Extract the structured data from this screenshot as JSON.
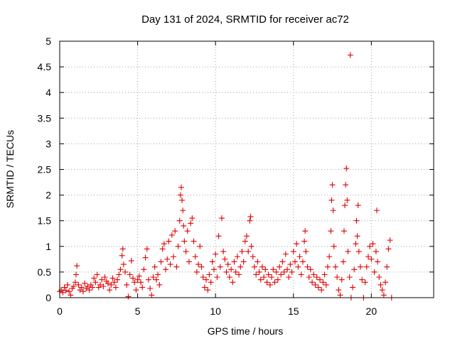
{
  "chart_data": {
    "type": "scatter",
    "title": "Day 131 of 2024, SRMTID for receiver ac72",
    "xlabel": "GPS time / hours",
    "ylabel": "SRMTID / TECUs",
    "xlim": [
      0,
      24
    ],
    "ylim": [
      0,
      5
    ],
    "xticks": [
      0,
      5,
      10,
      15,
      20
    ],
    "yticks": [
      0,
      0.5,
      1,
      1.5,
      2,
      2.5,
      3,
      3.5,
      4,
      4.5,
      5
    ],
    "xtick_labels": [
      "0",
      "5",
      "10",
      "15",
      "20"
    ],
    "ytick_labels": [
      "0",
      "0.5",
      "1",
      "1.5",
      "2",
      "2.5",
      "3",
      "3.5",
      "4",
      "4.5",
      "5"
    ],
    "grid": true,
    "marker": "+",
    "color": "#e00000",
    "series": [
      {
        "name": "SRMTID",
        "points": [
          [
            0.0,
            0.12
          ],
          [
            0.1,
            0.15
          ],
          [
            0.2,
            0.1
          ],
          [
            0.3,
            0.2
          ],
          [
            0.4,
            0.14
          ],
          [
            0.5,
            0.25
          ],
          [
            0.6,
            0.12
          ],
          [
            0.7,
            0.05
          ],
          [
            0.8,
            0.18
          ],
          [
            0.9,
            0.22
          ],
          [
            1.0,
            0.3
          ],
          [
            1.05,
            0.45
          ],
          [
            1.1,
            0.62
          ],
          [
            1.2,
            0.25
          ],
          [
            1.3,
            0.15
          ],
          [
            1.4,
            0.2
          ],
          [
            1.5,
            0.12
          ],
          [
            1.6,
            0.28
          ],
          [
            1.7,
            0.18
          ],
          [
            1.8,
            0.22
          ],
          [
            1.9,
            0.15
          ],
          [
            2.0,
            0.25
          ],
          [
            2.1,
            0.2
          ],
          [
            2.2,
            0.38
          ],
          [
            2.3,
            0.3
          ],
          [
            2.4,
            0.45
          ],
          [
            2.5,
            0.2
          ],
          [
            2.6,
            0.25
          ],
          [
            2.7,
            0.35
          ],
          [
            2.8,
            0.22
          ],
          [
            2.9,
            0.4
          ],
          [
            3.0,
            0.32
          ],
          [
            3.1,
            0.28
          ],
          [
            3.2,
            0.15
          ],
          [
            3.3,
            0.25
          ],
          [
            3.4,
            0.38
          ],
          [
            3.5,
            0.3
          ],
          [
            3.6,
            0.2
          ],
          [
            3.7,
            0.35
          ],
          [
            3.8,
            0.45
          ],
          [
            3.9,
            0.55
          ],
          [
            4.0,
            0.82
          ],
          [
            4.05,
            0.95
          ],
          [
            4.1,
            0.65
          ],
          [
            4.2,
            0.5
          ],
          [
            4.3,
            0.25
          ],
          [
            4.4,
            0.02
          ],
          [
            4.5,
            0.45
          ],
          [
            4.6,
            0.72
          ],
          [
            4.7,
            0.38
          ],
          [
            4.8,
            0.3
          ],
          [
            4.9,
            0.15
          ],
          [
            5.0,
            0.35
          ],
          [
            5.1,
            0.42
          ],
          [
            5.2,
            0.3
          ],
          [
            5.3,
            0.2
          ],
          [
            5.4,
            0.55
          ],
          [
            5.5,
            0.78
          ],
          [
            5.6,
            0.95
          ],
          [
            5.7,
            0.35
          ],
          [
            5.8,
            0.18
          ],
          [
            5.9,
            0.05
          ],
          [
            6.0,
            0.4
          ],
          [
            6.1,
            0.6
          ],
          [
            6.2,
            0.35
          ],
          [
            6.3,
            0.45
          ],
          [
            6.4,
            0.25
          ],
          [
            6.5,
            0.7
          ],
          [
            6.6,
            0.95
          ],
          [
            6.7,
            1.05
          ],
          [
            6.8,
            0.55
          ],
          [
            6.9,
            0.75
          ],
          [
            7.0,
            1.1
          ],
          [
            7.1,
            0.65
          ],
          [
            7.2,
            1.22
          ],
          [
            7.3,
            0.8
          ],
          [
            7.4,
            1.3
          ],
          [
            7.5,
            0.6
          ],
          [
            7.6,
            1.0
          ],
          [
            7.7,
            1.5
          ],
          [
            7.75,
            2.0
          ],
          [
            7.8,
            2.15
          ],
          [
            7.85,
            1.9
          ],
          [
            7.9,
            1.7
          ],
          [
            7.95,
            1.4
          ],
          [
            8.0,
            1.1
          ],
          [
            8.1,
            0.9
          ],
          [
            8.2,
            1.3
          ],
          [
            8.3,
            0.7
          ],
          [
            8.4,
            1.45
          ],
          [
            8.5,
            1.55
          ],
          [
            8.6,
            1.1
          ],
          [
            8.7,
            0.8
          ],
          [
            8.8,
            0.5
          ],
          [
            8.9,
            0.65
          ],
          [
            9.0,
            1.0
          ],
          [
            9.1,
            0.6
          ],
          [
            9.2,
            0.4
          ],
          [
            9.3,
            0.2
          ],
          [
            9.4,
            0.35
          ],
          [
            9.5,
            0.15
          ],
          [
            9.6,
            0.45
          ],
          [
            9.7,
            0.3
          ],
          [
            9.8,
            0.7
          ],
          [
            9.9,
            0.55
          ],
          [
            10.0,
            0.85
          ],
          [
            10.1,
            0.4
          ],
          [
            10.2,
            1.2
          ],
          [
            10.3,
            0.6
          ],
          [
            10.4,
            1.55
          ],
          [
            10.5,
            0.9
          ],
          [
            10.6,
            0.75
          ],
          [
            10.7,
            0.5
          ],
          [
            10.8,
            0.65
          ],
          [
            10.9,
            0.4
          ],
          [
            11.0,
            0.55
          ],
          [
            11.1,
            0.3
          ],
          [
            11.2,
            0.7
          ],
          [
            11.3,
            0.5
          ],
          [
            11.4,
            0.8
          ],
          [
            11.5,
            0.45
          ],
          [
            11.6,
            0.6
          ],
          [
            11.7,
            0.9
          ],
          [
            11.8,
            0.7
          ],
          [
            11.9,
            1.1
          ],
          [
            12.0,
            1.2
          ],
          [
            12.1,
            0.9
          ],
          [
            12.2,
            1.5
          ],
          [
            12.25,
            1.58
          ],
          [
            12.3,
            1.0
          ],
          [
            12.4,
            0.8
          ],
          [
            12.5,
            0.6
          ],
          [
            12.6,
            0.45
          ],
          [
            12.7,
            0.7
          ],
          [
            12.8,
            0.5
          ],
          [
            12.9,
            0.35
          ],
          [
            13.0,
            0.6
          ],
          [
            13.1,
            0.4
          ],
          [
            13.2,
            0.55
          ],
          [
            13.3,
            0.3
          ],
          [
            13.4,
            0.45
          ],
          [
            13.5,
            0.25
          ],
          [
            13.6,
            0.4
          ],
          [
            13.7,
            0.55
          ],
          [
            13.8,
            0.3
          ],
          [
            13.9,
            0.5
          ],
          [
            14.0,
            0.35
          ],
          [
            14.1,
            0.6
          ],
          [
            14.2,
            0.45
          ],
          [
            14.3,
            0.7
          ],
          [
            14.4,
            0.5
          ],
          [
            14.5,
            0.85
          ],
          [
            14.6,
            0.55
          ],
          [
            14.7,
            0.4
          ],
          [
            14.8,
            0.65
          ],
          [
            14.9,
            0.5
          ],
          [
            15.0,
            0.9
          ],
          [
            15.1,
            0.7
          ],
          [
            15.2,
            1.05
          ],
          [
            15.3,
            0.6
          ],
          [
            15.4,
            0.8
          ],
          [
            15.5,
            0.45
          ],
          [
            15.6,
            0.7
          ],
          [
            15.7,
            1.1
          ],
          [
            15.75,
            1.3
          ],
          [
            15.8,
            0.9
          ],
          [
            15.9,
            0.6
          ],
          [
            16.0,
            0.4
          ],
          [
            16.1,
            0.55
          ],
          [
            16.2,
            0.3
          ],
          [
            16.3,
            0.45
          ],
          [
            16.4,
            0.25
          ],
          [
            16.5,
            0.4
          ],
          [
            16.6,
            0.2
          ],
          [
            16.7,
            0.35
          ],
          [
            16.8,
            0.15
          ],
          [
            16.9,
            0.3
          ],
          [
            17.0,
            0.45
          ],
          [
            17.1,
            0.25
          ],
          [
            17.2,
            0.6
          ],
          [
            17.3,
            0.8
          ],
          [
            17.4,
            1.3
          ],
          [
            17.45,
            1.9
          ],
          [
            17.5,
            2.2
          ],
          [
            17.55,
            1.7
          ],
          [
            17.6,
            1.0
          ],
          [
            17.7,
            0.6
          ],
          [
            17.8,
            0.4
          ],
          [
            17.9,
            0.15
          ],
          [
            18.0,
            0.05
          ],
          [
            18.1,
            0.35
          ],
          [
            18.2,
            0.7
          ],
          [
            18.25,
            1.3
          ],
          [
            18.3,
            1.8
          ],
          [
            18.35,
            2.2
          ],
          [
            18.4,
            2.52
          ],
          [
            18.45,
            1.9
          ],
          [
            18.5,
            0.9
          ],
          [
            18.6,
            0.4
          ],
          [
            18.65,
            4.73
          ],
          [
            18.7,
            0.0
          ],
          [
            18.8,
            0.2
          ],
          [
            18.9,
            0.55
          ],
          [
            19.0,
            1.05
          ],
          [
            19.05,
            1.5
          ],
          [
            19.1,
            1.2
          ],
          [
            19.15,
            1.8
          ],
          [
            19.2,
            0.9
          ],
          [
            19.3,
            0.6
          ],
          [
            19.4,
            0.35
          ],
          [
            19.5,
            0.0
          ],
          [
            19.6,
            0.3
          ],
          [
            19.7,
            0.6
          ],
          [
            19.8,
            0.8
          ],
          [
            19.9,
            1.0
          ],
          [
            20.0,
            0.75
          ],
          [
            20.1,
            1.05
          ],
          [
            20.2,
            0.5
          ],
          [
            20.3,
            0.9
          ],
          [
            20.35,
            1.7
          ],
          [
            20.4,
            0.7
          ],
          [
            20.5,
            0.4
          ],
          [
            20.6,
            0.25
          ],
          [
            20.7,
            0.15
          ],
          [
            20.8,
            0.05
          ],
          [
            20.9,
            0.3
          ],
          [
            21.0,
            0.6
          ],
          [
            21.1,
            0.95
          ],
          [
            21.2,
            1.12
          ],
          [
            21.3,
            0.0
          ]
        ]
      }
    ]
  }
}
